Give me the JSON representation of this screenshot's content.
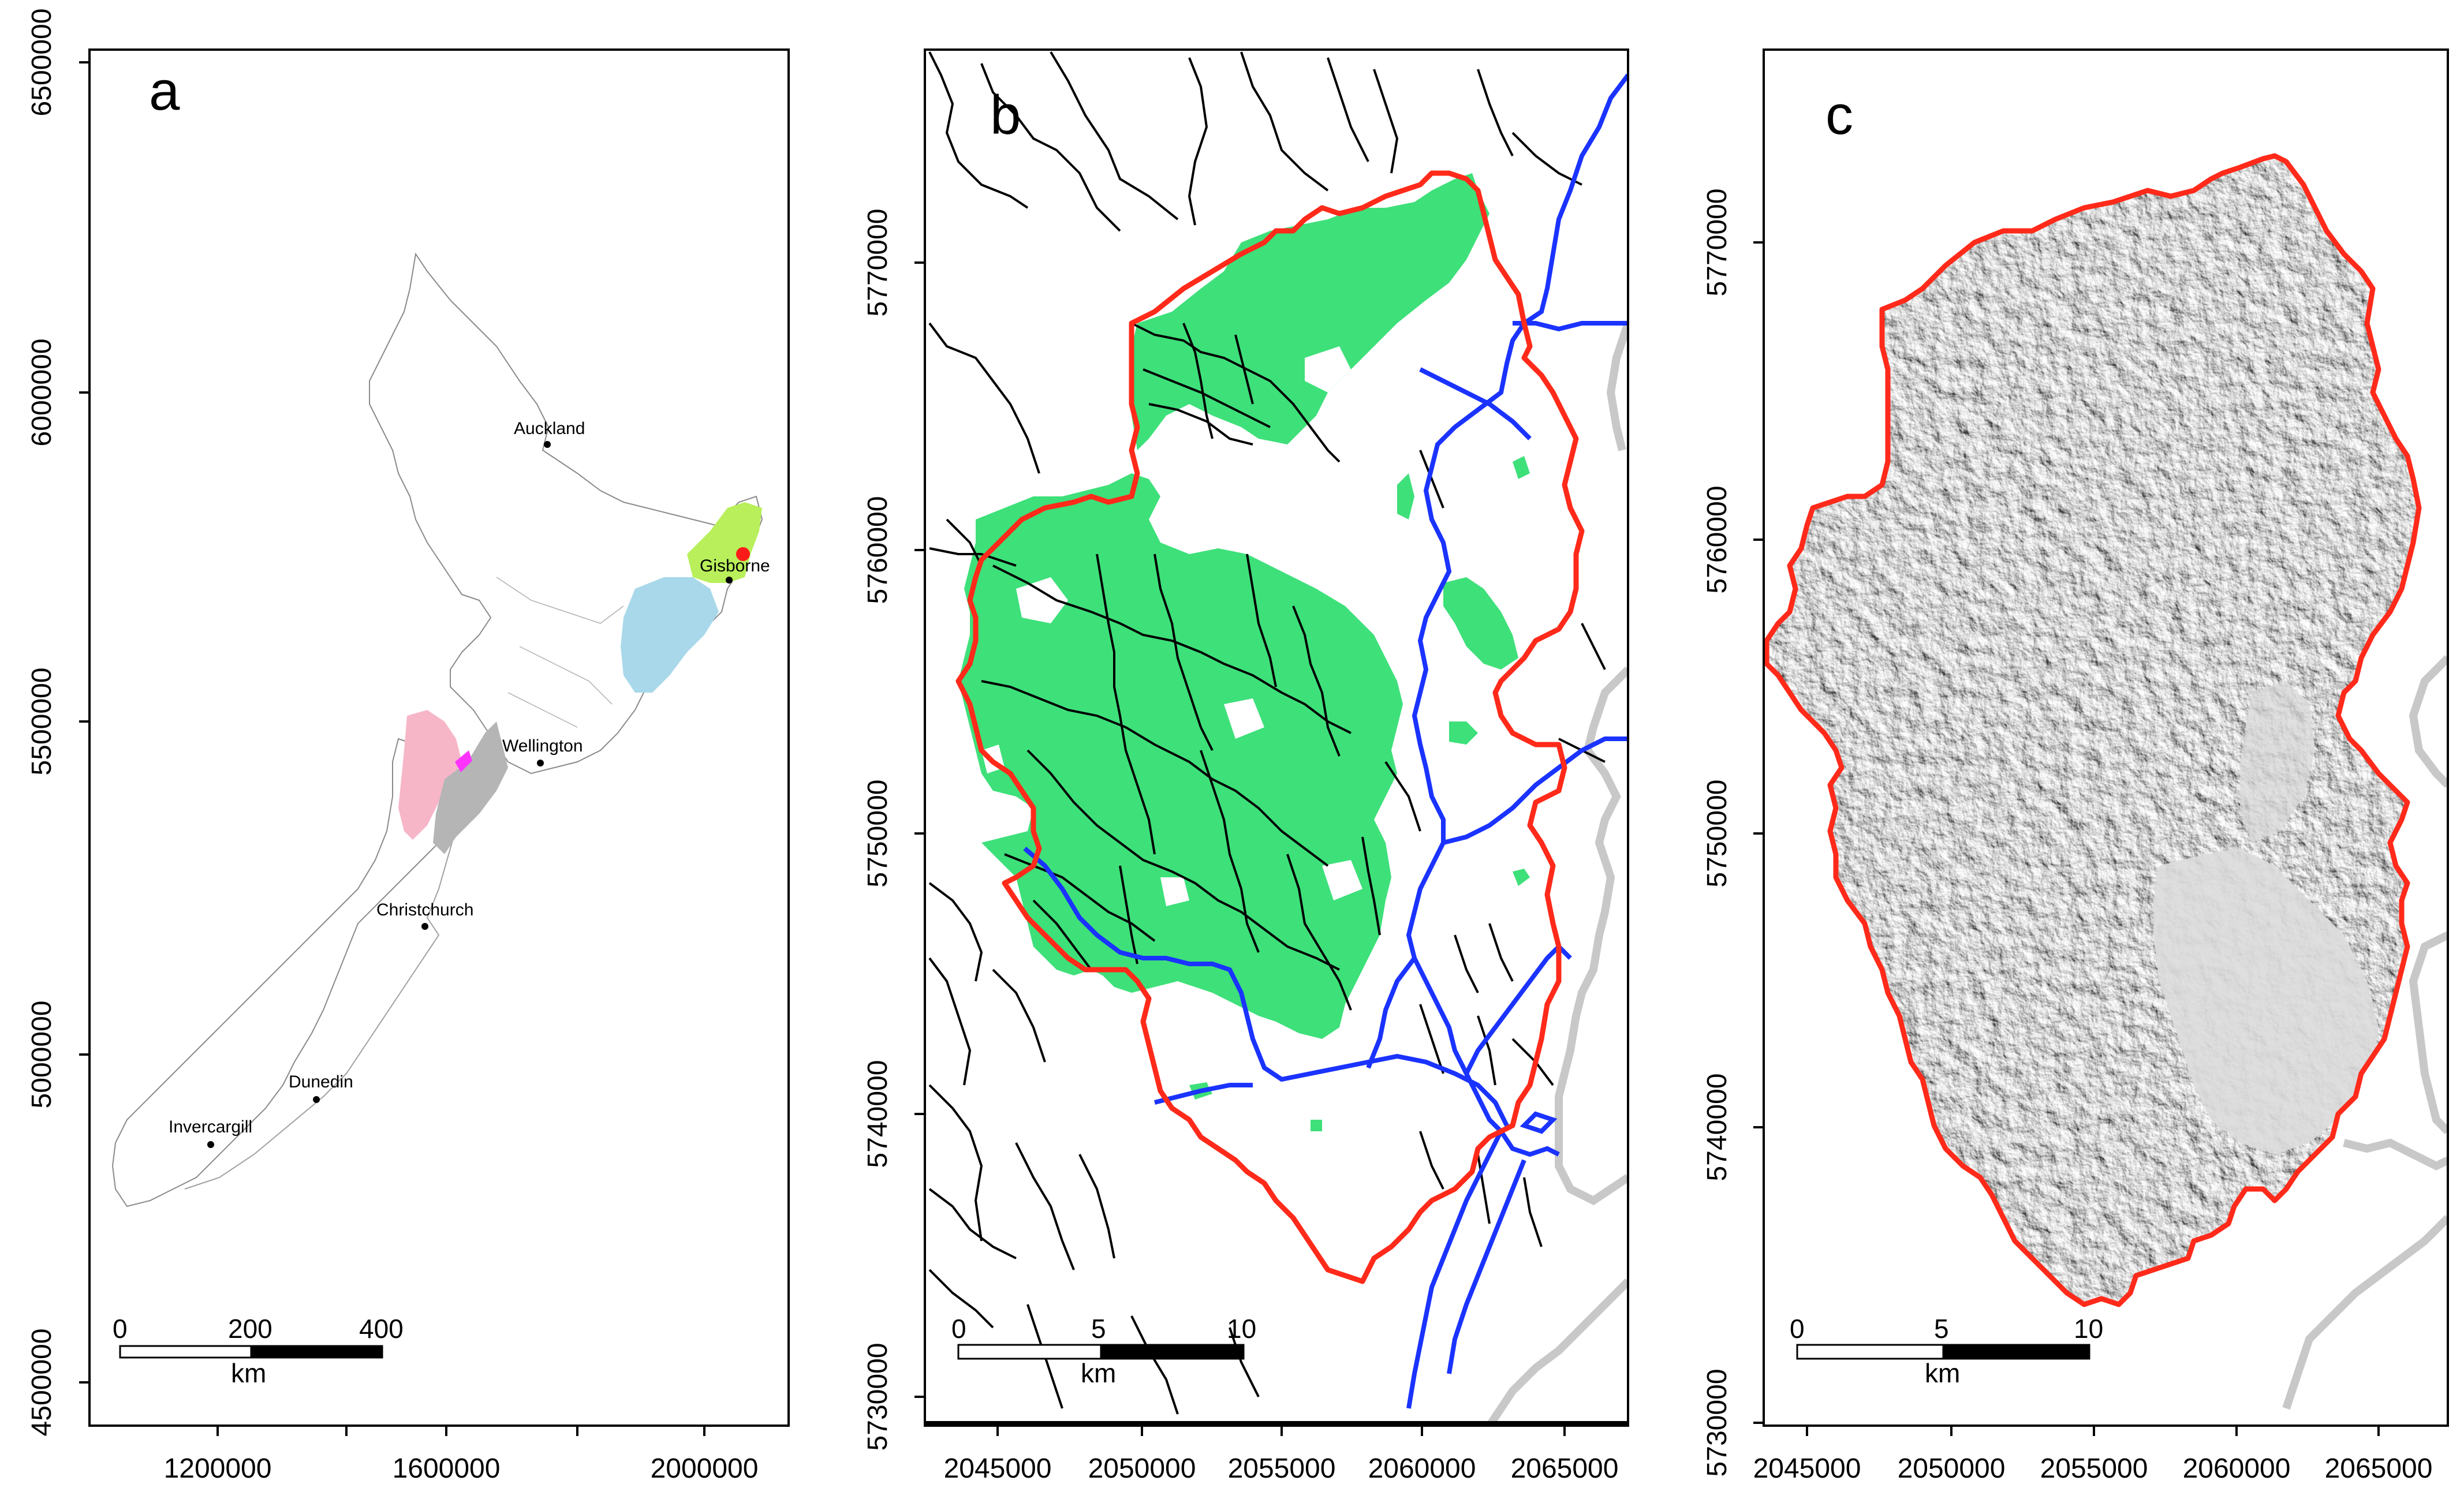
{
  "panels": [
    {
      "id": "a",
      "letter": "a",
      "x_ticks": [
        "1200000",
        "1600000",
        "2000000"
      ],
      "y_ticks": [
        "4500000",
        "5000000",
        "5500000",
        "6000000",
        "6500000"
      ],
      "cities": [
        {
          "name": "Auckland"
        },
        {
          "name": "Gisborne"
        },
        {
          "name": "Wellington"
        },
        {
          "name": "Christchurch"
        },
        {
          "name": "Dunedin"
        },
        {
          "name": "Invercargill"
        }
      ],
      "scalebar": {
        "labels": [
          "0",
          "200",
          "400"
        ],
        "unit": "km"
      },
      "colors": {
        "gisborne_region": "#b8ef5a",
        "hawkes_bay": "#a8d8ea",
        "marlborough_pink": "#f6b6c8",
        "wellington_grey": "#b5b5b5",
        "magenta": "#ff33ff",
        "study_site": "#ff1a1a"
      }
    },
    {
      "id": "b",
      "letter": "b",
      "x_ticks": [
        "2045000",
        "2050000",
        "2055000",
        "2060000",
        "2065000"
      ],
      "y_ticks": [
        "5730000",
        "5740000",
        "5750000",
        "5760000",
        "5770000"
      ],
      "scalebar": {
        "labels": [
          "0",
          "5",
          "10"
        ],
        "unit": "km"
      },
      "colors": {
        "boundary": "#ff2a1a",
        "forest": "#3ee07a",
        "river_major": "#1a33ff",
        "stream": "#000000",
        "coast": "#c8c8c8"
      }
    },
    {
      "id": "c",
      "letter": "c",
      "x_ticks": [
        "2045000",
        "2050000",
        "2055000",
        "2060000",
        "2065000"
      ],
      "y_ticks": [
        "5730000",
        "5740000",
        "5750000",
        "5760000",
        "5770000"
      ],
      "scalebar": {
        "labels": [
          "0",
          "5",
          "10"
        ],
        "unit": "km"
      },
      "colors": {
        "boundary": "#ff2a1a",
        "hillshade_dark": "#3a3a3a",
        "hillshade_light": "#e0e0e0",
        "coast": "#c8c8c8"
      }
    }
  ]
}
